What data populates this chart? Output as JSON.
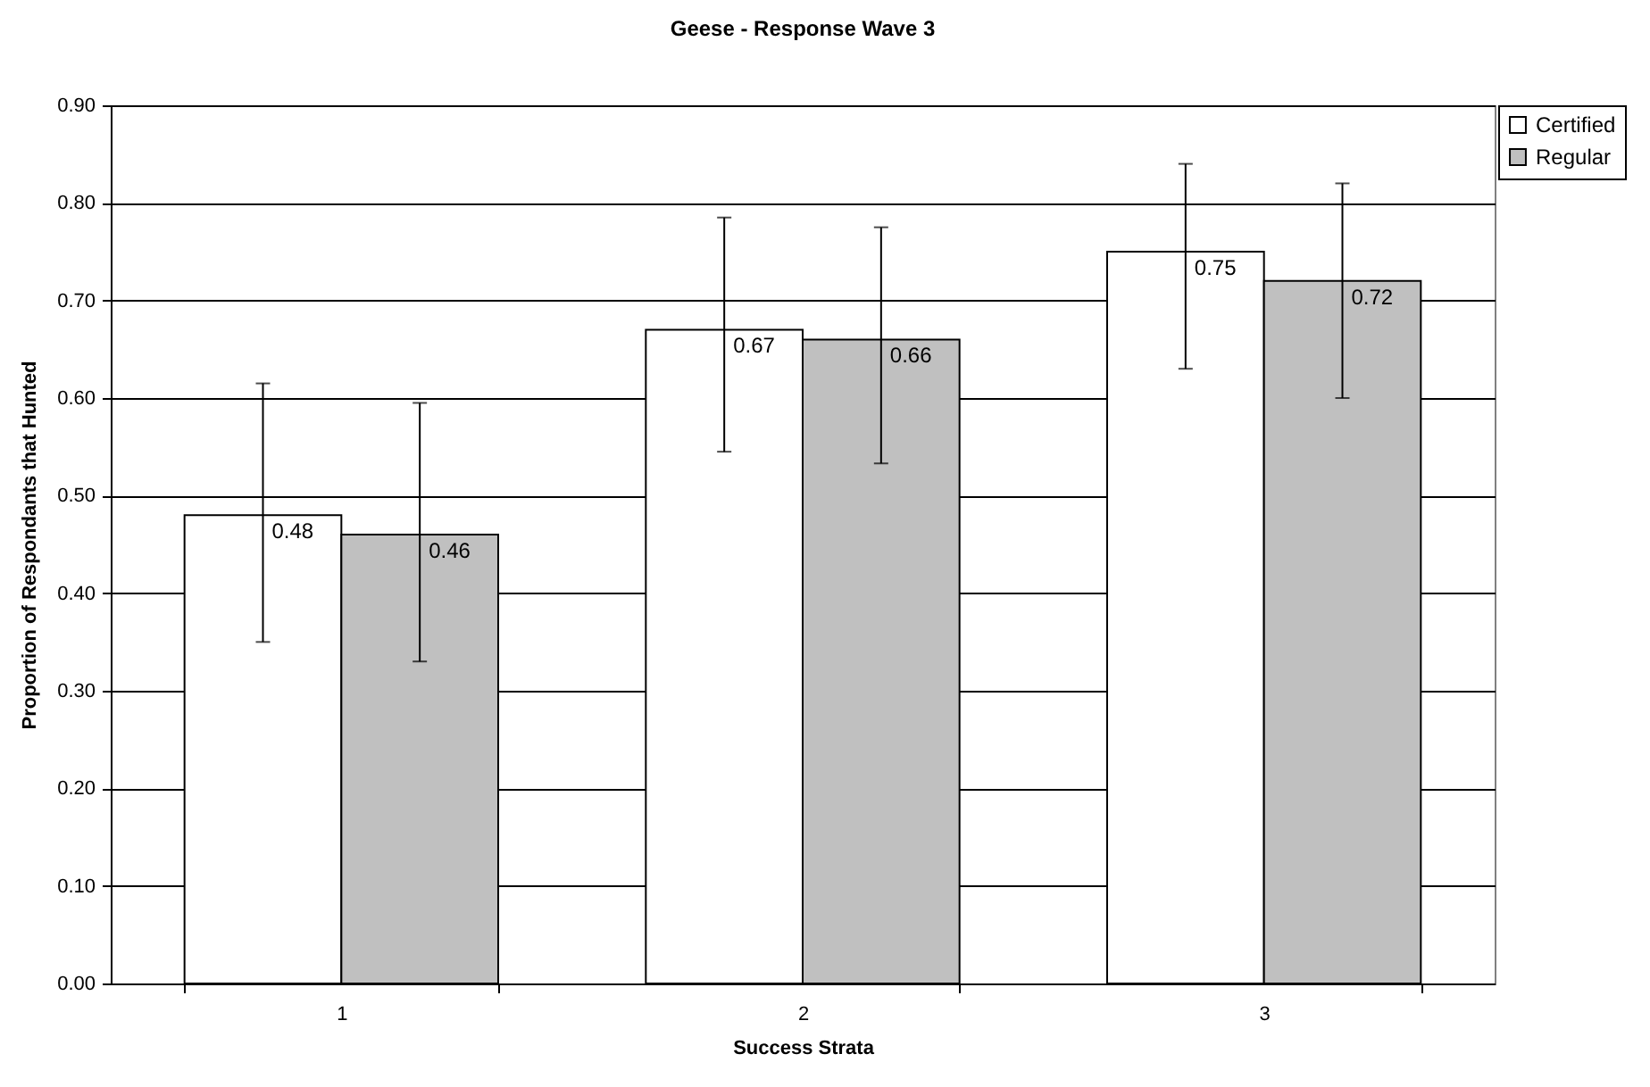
{
  "chart_data": {
    "type": "bar",
    "title": "Geese - Response Wave 3",
    "xlabel": "Success Strata",
    "ylabel": "Proportion of Respondants that Hunted",
    "categories": [
      "1",
      "2",
      "3"
    ],
    "series": [
      {
        "name": "Certified",
        "color": "#ffffff",
        "values": [
          0.48,
          0.67,
          0.75
        ],
        "errors": [
          [
            0.35,
            0.615
          ],
          [
            0.545,
            0.785
          ],
          [
            0.63,
            0.84
          ]
        ]
      },
      {
        "name": "Regular",
        "color": "#c0c0c0",
        "values": [
          0.46,
          0.66,
          0.72
        ],
        "errors": [
          [
            0.33,
            0.595
          ],
          [
            0.533,
            0.775
          ],
          [
            0.6,
            0.82
          ]
        ]
      }
    ],
    "ylim": [
      0,
      0.9
    ],
    "yticks": [
      {
        "value": 0,
        "label": "0.00"
      },
      {
        "value": 0.1,
        "label": "0.10"
      },
      {
        "value": 0.2,
        "label": "0.20"
      },
      {
        "value": 0.3,
        "label": "0.30"
      },
      {
        "value": 0.4,
        "label": "0.40"
      },
      {
        "value": 0.5,
        "label": "0.50"
      },
      {
        "value": 0.6,
        "label": "0.60"
      },
      {
        "value": 0.7,
        "label": "0.70"
      },
      {
        "value": 0.8,
        "label": "0.80"
      },
      {
        "value": 0.9,
        "label": "0.90"
      }
    ],
    "grid": "y",
    "legend": "right",
    "data_labels": true
  }
}
